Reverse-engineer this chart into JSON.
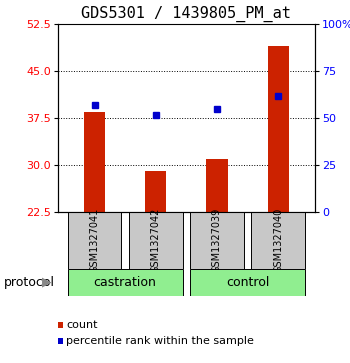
{
  "title": "GDS5301 / 1439805_PM_at",
  "samples": [
    "GSM1327041",
    "GSM1327042",
    "GSM1327039",
    "GSM1327040"
  ],
  "bar_values": [
    38.5,
    29.0,
    31.0,
    49.0
  ],
  "blue_values": [
    39.5,
    38.0,
    39.0,
    41.0
  ],
  "baseline": 22.5,
  "ylim_left": [
    22.5,
    52.5
  ],
  "yticks_left": [
    22.5,
    30,
    37.5,
    45,
    52.5
  ],
  "ylim_right": [
    0,
    100
  ],
  "yticks_right": [
    0,
    25,
    50,
    75,
    100
  ],
  "ytick_labels_right": [
    "0",
    "25",
    "50",
    "75",
    "100%"
  ],
  "groups": [
    {
      "label": "castration",
      "indices": [
        0,
        1
      ]
    },
    {
      "label": "control",
      "indices": [
        2,
        3
      ]
    }
  ],
  "group_color": "#90EE90",
  "bar_color": "#CC2200",
  "blue_color": "#0000CC",
  "sample_box_color": "#C8C8C8",
  "protocol_label": "protocol",
  "legend_items": [
    {
      "color": "#CC2200",
      "label": "count"
    },
    {
      "color": "#0000CC",
      "label": "percentile rank within the sample"
    }
  ],
  "bar_width": 0.35,
  "title_fontsize": 11,
  "tick_fontsize": 8,
  "sample_fontsize": 7,
  "group_fontsize": 9,
  "legend_fontsize": 8
}
